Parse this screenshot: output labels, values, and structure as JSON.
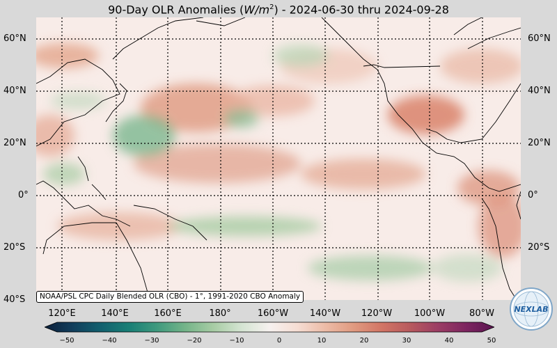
{
  "title": {
    "prefix": "90-Day OLR Anomalies (",
    "units": "W/m",
    "units_sup": "2",
    "suffix": ") - 2024-06-30 thru 2024-09-28"
  },
  "map": {
    "lat_labels": [
      "60°N",
      "40°N",
      "20°N",
      "0°",
      "20°S",
      "40°S"
    ],
    "lon_labels": [
      "120°E",
      "140°E",
      "160°E",
      "180°",
      "160°W",
      "140°W",
      "120°W",
      "100°W",
      "80°W"
    ],
    "extent": {
      "lon_min": 100,
      "lon_max": 290,
      "lat_min": -40,
      "lat_max": 68
    }
  },
  "attribution": "NOAA/PSL CPC Daily Blended OLR (CBO) - 1°, 1991-2020 CBO Anomaly",
  "colorbar": {
    "ticks": [
      "−50",
      "−40",
      "−30",
      "−20",
      "−10",
      "0",
      "10",
      "20",
      "30",
      "40",
      "50"
    ],
    "min": -50,
    "max": 50,
    "colors": [
      "#0b1f3a",
      "#123e5c",
      "#12606e",
      "#197f76",
      "#3f9a7e",
      "#74b489",
      "#a7cca4",
      "#d4e4d2",
      "#f6f1ef",
      "#f6ddd3",
      "#ecbba6",
      "#e09a80",
      "#d27565",
      "#b85a5e",
      "#9b3d64",
      "#7d2560",
      "#5a1450"
    ]
  },
  "logo": {
    "text": "NEXLAB",
    "icon": "nexlab-globe-logo"
  }
}
